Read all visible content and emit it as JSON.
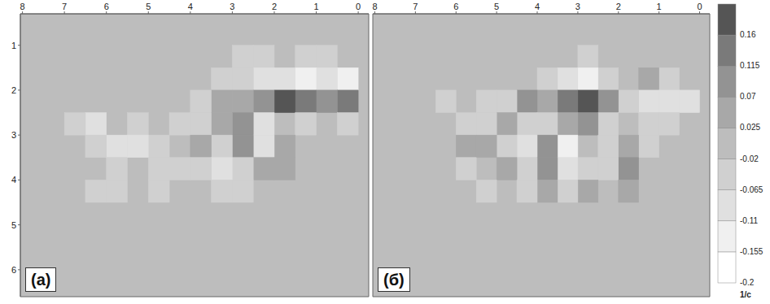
{
  "chart_data": [
    {
      "type": "heatmap",
      "title": "(а)",
      "xlim": [
        8.05,
        -0.25
      ],
      "xticks": [
        8,
        7,
        6,
        5,
        4,
        3,
        2,
        1,
        0
      ],
      "ylim": [
        6.6,
        0.3
      ],
      "yticks": [
        1,
        2,
        3,
        4,
        5,
        6
      ],
      "tick_labels": true,
      "cell_size": 0.5,
      "cells": [
        [
          0.75,
          1.25,
          -0.04
        ],
        [
          1.25,
          1.25,
          -0.04
        ],
        [
          2.25,
          1.25,
          -0.04
        ],
        [
          2.75,
          1.25,
          -0.04
        ],
        [
          0.25,
          1.75,
          -0.13
        ],
        [
          0.75,
          1.75,
          -0.09
        ],
        [
          1.25,
          1.75,
          -0.13
        ],
        [
          1.75,
          1.75,
          -0.09
        ],
        [
          2.25,
          1.75,
          -0.09
        ],
        [
          2.75,
          1.75,
          -0.04
        ],
        [
          3.25,
          1.75,
          -0.04
        ],
        [
          0.25,
          2.25,
          0.14
        ],
        [
          0.75,
          2.25,
          0.09
        ],
        [
          1.25,
          2.25,
          0.14
        ],
        [
          1.75,
          2.25,
          0.18
        ],
        [
          2.25,
          2.25,
          0.09
        ],
        [
          2.75,
          2.25,
          0.05
        ],
        [
          3.25,
          2.25,
          0.05
        ],
        [
          3.75,
          2.25,
          -0.04
        ],
        [
          0.25,
          2.75,
          -0.04
        ],
        [
          1.25,
          2.75,
          -0.04
        ],
        [
          2.25,
          2.75,
          -0.09
        ],
        [
          2.75,
          2.75,
          0.09
        ],
        [
          3.25,
          2.75,
          0.05
        ],
        [
          3.75,
          2.75,
          -0.04
        ],
        [
          4.25,
          2.75,
          -0.04
        ],
        [
          5.25,
          2.75,
          -0.04
        ],
        [
          6.25,
          2.75,
          -0.09
        ],
        [
          6.75,
          2.75,
          -0.04
        ],
        [
          1.75,
          3.25,
          0.05
        ],
        [
          2.25,
          3.25,
          -0.09
        ],
        [
          2.75,
          3.25,
          0.09
        ],
        [
          3.25,
          3.25,
          -0.04
        ],
        [
          3.75,
          3.25,
          0.05
        ],
        [
          4.75,
          3.25,
          -0.04
        ],
        [
          5.25,
          3.25,
          -0.09
        ],
        [
          5.75,
          3.25,
          -0.09
        ],
        [
          6.25,
          3.25,
          -0.04
        ],
        [
          1.75,
          3.75,
          0.05
        ],
        [
          2.25,
          3.75,
          0.05
        ],
        [
          2.75,
          3.75,
          -0.04
        ],
        [
          3.25,
          3.75,
          -0.09
        ],
        [
          3.75,
          3.75,
          -0.04
        ],
        [
          4.25,
          3.75,
          -0.04
        ],
        [
          4.75,
          3.75,
          -0.04
        ],
        [
          5.75,
          3.75,
          -0.04
        ],
        [
          2.75,
          4.25,
          -0.04
        ],
        [
          3.25,
          4.25,
          -0.04
        ],
        [
          4.75,
          4.25,
          -0.04
        ],
        [
          5.75,
          4.25,
          -0.04
        ],
        [
          6.25,
          4.25,
          -0.04
        ]
      ]
    },
    {
      "type": "heatmap",
      "title": "(б)",
      "xlim": [
        8.05,
        -0.25
      ],
      "xticks": [
        8,
        7,
        6,
        5,
        4,
        3,
        2,
        1,
        0
      ],
      "ylim": [
        6.6,
        0.3
      ],
      "yticks": [
        1,
        2,
        3,
        4,
        5,
        6
      ],
      "tick_labels": "x",
      "cell_size": 0.5,
      "cells": [
        [
          2.75,
          1.25,
          -0.04
        ],
        [
          0.75,
          1.75,
          -0.04
        ],
        [
          1.25,
          1.75,
          0.05
        ],
        [
          2.25,
          1.75,
          -0.04
        ],
        [
          2.75,
          1.75,
          -0.13
        ],
        [
          3.25,
          1.75,
          -0.09
        ],
        [
          3.75,
          1.75,
          -0.04
        ],
        [
          0.25,
          2.25,
          -0.09
        ],
        [
          0.75,
          2.25,
          -0.09
        ],
        [
          1.25,
          2.25,
          -0.09
        ],
        [
          1.75,
          2.25,
          -0.04
        ],
        [
          2.25,
          2.25,
          0.09
        ],
        [
          2.75,
          2.25,
          0.18
        ],
        [
          3.25,
          2.25,
          0.14
        ],
        [
          3.75,
          2.25,
          0.05
        ],
        [
          4.25,
          2.25,
          0.09
        ],
        [
          4.75,
          2.25,
          -0.04
        ],
        [
          5.25,
          2.25,
          -0.04
        ],
        [
          6.25,
          2.25,
          -0.04
        ],
        [
          0.75,
          2.75,
          -0.04
        ],
        [
          1.25,
          2.75,
          -0.04
        ],
        [
          2.25,
          2.75,
          -0.04
        ],
        [
          2.75,
          2.75,
          0.09
        ],
        [
          3.25,
          2.75,
          0.05
        ],
        [
          3.75,
          2.75,
          -0.04
        ],
        [
          4.25,
          2.75,
          -0.04
        ],
        [
          4.75,
          2.75,
          0.05
        ],
        [
          5.25,
          2.75,
          -0.04
        ],
        [
          5.75,
          2.75,
          -0.04
        ],
        [
          1.25,
          3.25,
          -0.04
        ],
        [
          1.75,
          3.25,
          0.05
        ],
        [
          2.25,
          3.25,
          -0.04
        ],
        [
          3.25,
          3.25,
          -0.13
        ],
        [
          3.75,
          3.25,
          0.09
        ],
        [
          4.25,
          3.25,
          -0.09
        ],
        [
          4.75,
          3.25,
          -0.04
        ],
        [
          5.25,
          3.25,
          0.05
        ],
        [
          5.75,
          3.25,
          0.05
        ],
        [
          1.75,
          3.75,
          0.09
        ],
        [
          2.25,
          3.75,
          -0.04
        ],
        [
          2.75,
          3.75,
          -0.04
        ],
        [
          3.25,
          3.75,
          -0.09
        ],
        [
          3.75,
          3.75,
          0.09
        ],
        [
          4.25,
          3.75,
          -0.04
        ],
        [
          4.75,
          3.75,
          0.05
        ],
        [
          5.75,
          3.75,
          -0.04
        ],
        [
          1.75,
          4.25,
          0.05
        ],
        [
          2.75,
          4.25,
          0.05
        ],
        [
          3.25,
          4.25,
          -0.04
        ],
        [
          3.75,
          4.25,
          0.05
        ],
        [
          4.25,
          4.25,
          -0.04
        ],
        [
          5.25,
          4.25,
          -0.04
        ]
      ],
      "colorbar": {
        "range": [
          -0.2,
          0.205
        ],
        "ticks": [
          -0.2,
          -0.155,
          -0.11,
          -0.065,
          -0.02,
          0.025,
          0.07,
          0.115,
          0.16
        ],
        "colors": [
          "#ffffff",
          "#f0f0f0",
          "#e0e0e0",
          "#d0d0d0",
          "#bdbdbd",
          "#a8a8a8",
          "#939393",
          "#7a7a7a",
          "#555555"
        ],
        "label": "1/с"
      }
    }
  ]
}
